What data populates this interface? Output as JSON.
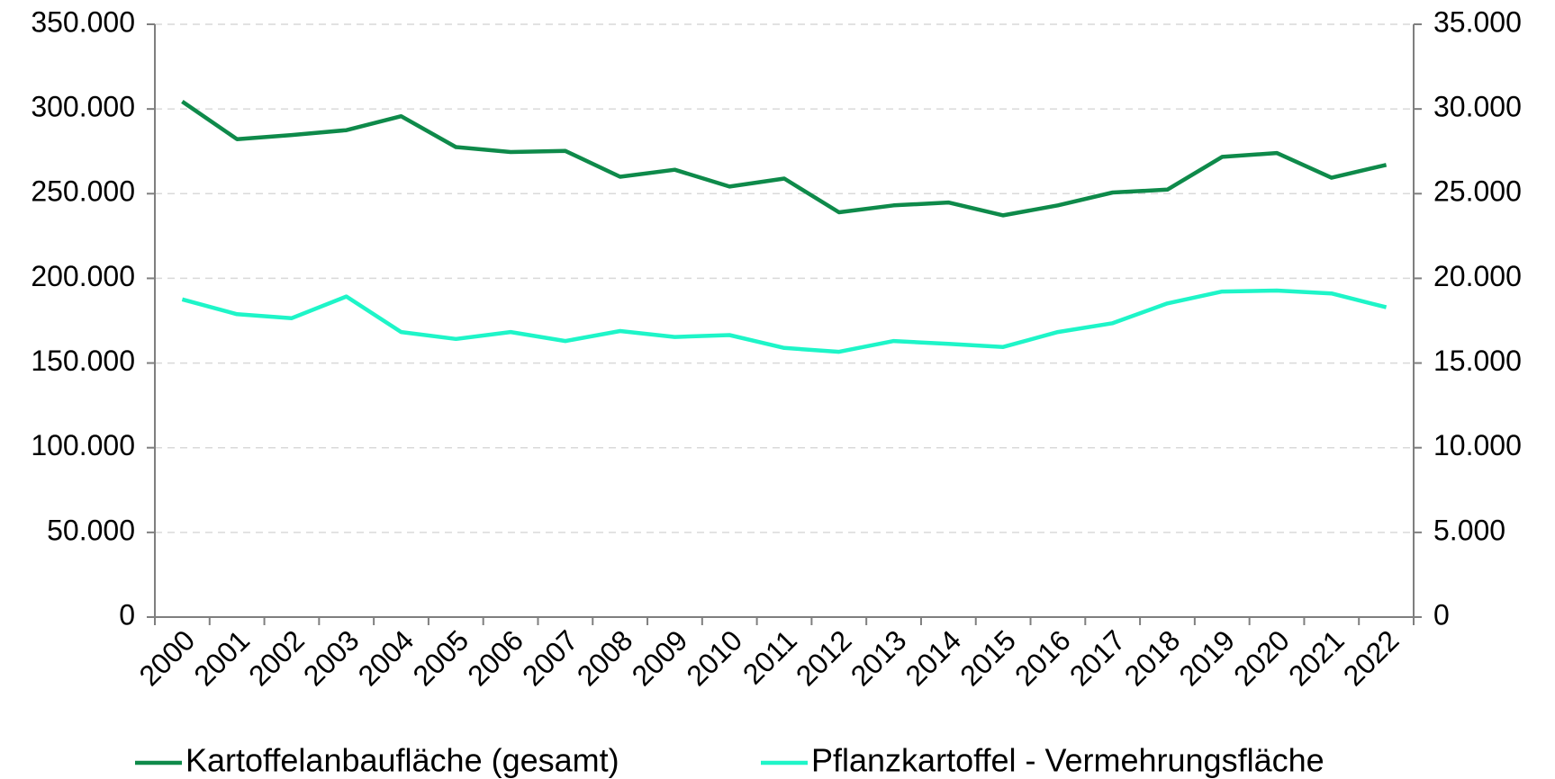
{
  "chart_data": {
    "type": "line",
    "categories": [
      "2000",
      "2001",
      "2002",
      "2003",
      "2004",
      "2005",
      "2006",
      "2007",
      "2008",
      "2009",
      "2010",
      "2011",
      "2012",
      "2013",
      "2014",
      "2015",
      "2016",
      "2017",
      "2018",
      "2019",
      "2020",
      "2021",
      "2022"
    ],
    "series": [
      {
        "name": "Kartoffelanbaufläche (gesamt)",
        "color": "#0e8a4a",
        "values": [
          304400,
          282200,
          284600,
          287500,
          295700,
          277500,
          274600,
          275200,
          260000,
          264100,
          254200,
          258900,
          239000,
          243100,
          244800,
          237200,
          243100,
          250700,
          252400,
          271700,
          274000,
          259400,
          267000
        ]
      },
      {
        "name": "Pflanzkartoffel - Vermehrungsfläche",
        "color": "#1ef5c8",
        "axis": "y2",
        "values": [
          18760,
          17880,
          17650,
          18930,
          16830,
          16420,
          16830,
          16300,
          16890,
          16540,
          16650,
          15890,
          15660,
          16300,
          16130,
          15950,
          16830,
          17350,
          18520,
          19220,
          19280,
          19110,
          18290
        ]
      }
    ],
    "ylim": [
      0,
      350000
    ],
    "yticks": [
      0,
      {
        "value": 50000,
        "label": "50.000"
      },
      {
        "value": 100000,
        "label": "100.000"
      },
      {
        "value": 150000,
        "label": "150.000"
      },
      {
        "value": 200000,
        "label": "200.000"
      },
      {
        "value": 250000,
        "label": "250.000"
      },
      {
        "value": 300000,
        "label": "300.000"
      },
      {
        "value": 350000,
        "label": "350.000"
      }
    ],
    "y2lim": [
      0,
      35000
    ],
    "y2ticks": [
      0,
      {
        "value": 5000,
        "label": "5.000"
      },
      {
        "value": 10000,
        "label": "10.000"
      },
      {
        "value": 15000,
        "label": "15.000"
      },
      {
        "value": 20000,
        "label": "20.000"
      },
      {
        "value": 25000,
        "label": "25.000"
      },
      {
        "value": 30000,
        "label": "30.000"
      },
      {
        "value": 35000,
        "label": "35.000"
      }
    ],
    "grid": true,
    "legend": "bottom"
  }
}
